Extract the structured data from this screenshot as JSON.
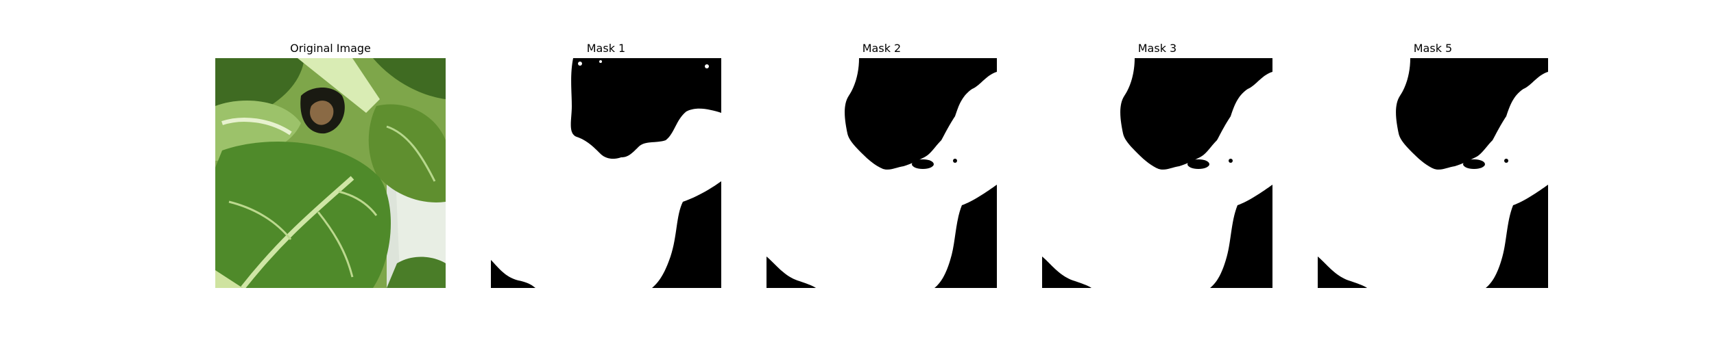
{
  "panels": [
    {
      "id": "original",
      "title": "Original Image",
      "kind": "photo",
      "subject": "leafy green plant (bok choy) in a white container"
    },
    {
      "id": "mask-1",
      "title": "Mask 1",
      "kind": "binary-mask"
    },
    {
      "id": "mask-2",
      "title": "Mask 2",
      "kind": "binary-mask"
    },
    {
      "id": "mask-3",
      "title": "Mask 3",
      "kind": "binary-mask"
    },
    {
      "id": "mask-5",
      "title": "Mask 5",
      "kind": "binary-mask"
    }
  ],
  "colors": {
    "background": "#ffffff",
    "mask_foreground": "#ffffff",
    "mask_background": "#000000",
    "leaf_dark": "#3f6b22",
    "leaf_mid": "#5f8f2f",
    "leaf_light": "#9cc26a",
    "stem": "#d9ecb4"
  }
}
